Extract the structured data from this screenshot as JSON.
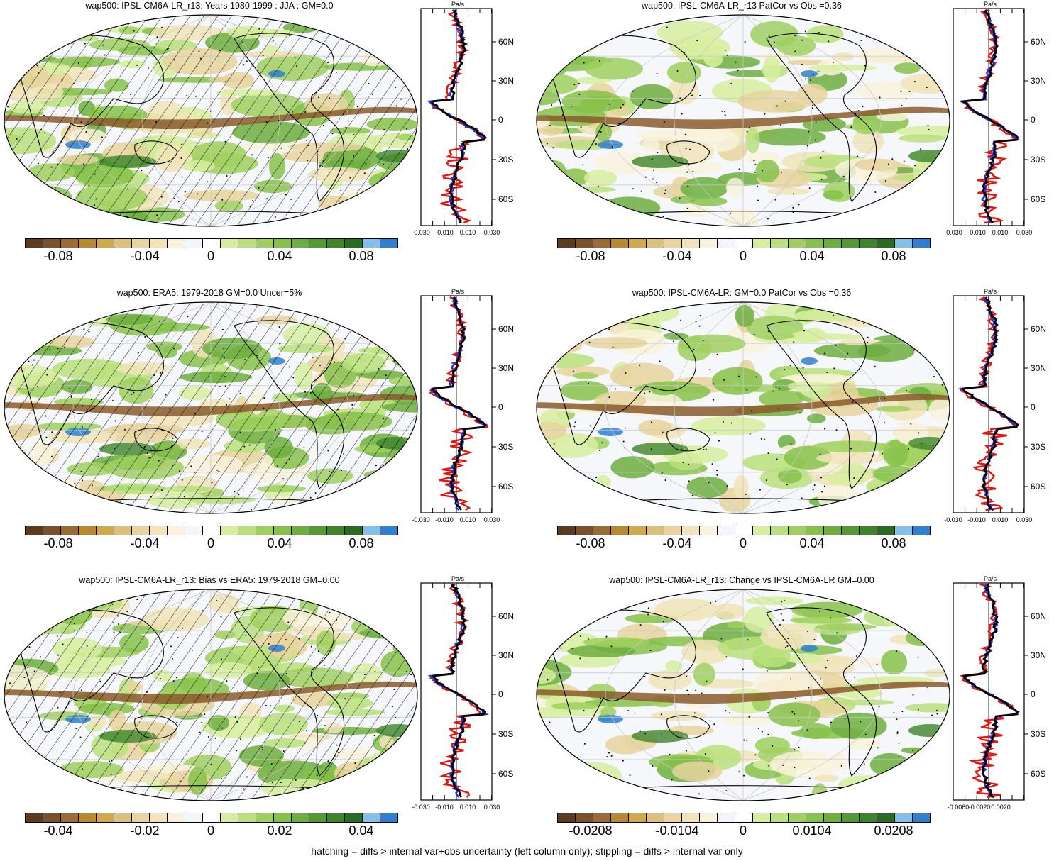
{
  "units": "Pa/s",
  "colors": [
    "#5b3a1e",
    "#7a5128",
    "#9a6b34",
    "#b8892f",
    "#d0a94a",
    "#dcc07a",
    "#e8d49c",
    "#f1e4b8",
    "#f9f2dc",
    "#f5f6fb",
    "#ffffff",
    "#d7ee9f",
    "#b9e07a",
    "#9fd05d",
    "#86c14a",
    "#6dae3e",
    "#549a33",
    "#3d852b",
    "#2a6b22",
    "#83c1ea",
    "#2f7fd0"
  ],
  "lat_labels": [
    "60N",
    "30N",
    "0",
    "30S",
    "60S"
  ],
  "line_colors": {
    "model": "#e8120c",
    "obs": "#1a33e0",
    "mean": "#000000"
  },
  "panels": [
    {
      "title": "wap500: IPSL-CM6A-LR_r13: Years 1980-1999 : JJA : GM=0.0",
      "profile_units": "Pa/s",
      "profile_ticks": [
        "-0.030",
        "-0.010",
        "0.010",
        "0.030"
      ],
      "colorbar_labels": [
        "-0.08",
        "-0.04",
        "0",
        "0.04",
        "0.08"
      ],
      "hatched": true
    },
    {
      "title": "wap500: IPSL-CM6A-LR_r13 PatCor vs Obs =0.36",
      "profile_units": "Pa/s",
      "profile_ticks": [
        "-0.030",
        "-0.010",
        "0.010",
        "0.030"
      ],
      "colorbar_labels": [
        "-0.08",
        "-0.04",
        "0",
        "0.04",
        "0.08"
      ],
      "hatched": false
    },
    {
      "title": "wap500: ERA5: 1979-2018 GM=0.0 Uncer=5%",
      "profile_units": "Pa/s",
      "profile_ticks": [
        "-0.030",
        "-0.010",
        "0.010",
        "0.030"
      ],
      "colorbar_labels": [
        "-0.08",
        "-0.04",
        "0",
        "0.04",
        "0.08"
      ],
      "hatched": true
    },
    {
      "title": "wap500: IPSL-CM6A-LR: GM=0.0 PatCor vs Obs =0.36",
      "profile_units": "Pa/s",
      "profile_ticks": [
        "-0.030",
        "-0.010",
        "0.010",
        "0.030"
      ],
      "colorbar_labels": [
        "-0.08",
        "-0.04",
        "0",
        "0.04",
        "0.08"
      ],
      "hatched": false
    },
    {
      "title": "wap500: IPSL-CM6A-LR_r13: Bias vs ERA5: 1979-2018 GM=0.00",
      "profile_units": "Pa/s",
      "profile_ticks": [
        "-0.030",
        "-0.010",
        "0.010",
        "0.030"
      ],
      "colorbar_labels": [
        "-0.04",
        "-0.02",
        "0",
        "0.02",
        "0.04"
      ],
      "hatched": true
    },
    {
      "title": "wap500: IPSL-CM6A-LR_r13: Change vs IPSL-CM6A-LR GM=0.00",
      "profile_units": "Pa/s",
      "profile_ticks": [
        "-0.0060",
        "-0.0020",
        "0.0020"
      ],
      "colorbar_labels": [
        "-0.0208",
        "-0.0104",
        "0",
        "0.0104",
        "0.0208"
      ],
      "hatched": false
    }
  ],
  "footer": "hatching = diffs > internal var+obs uncertainty (left column only); stippling = diffs > internal var only"
}
